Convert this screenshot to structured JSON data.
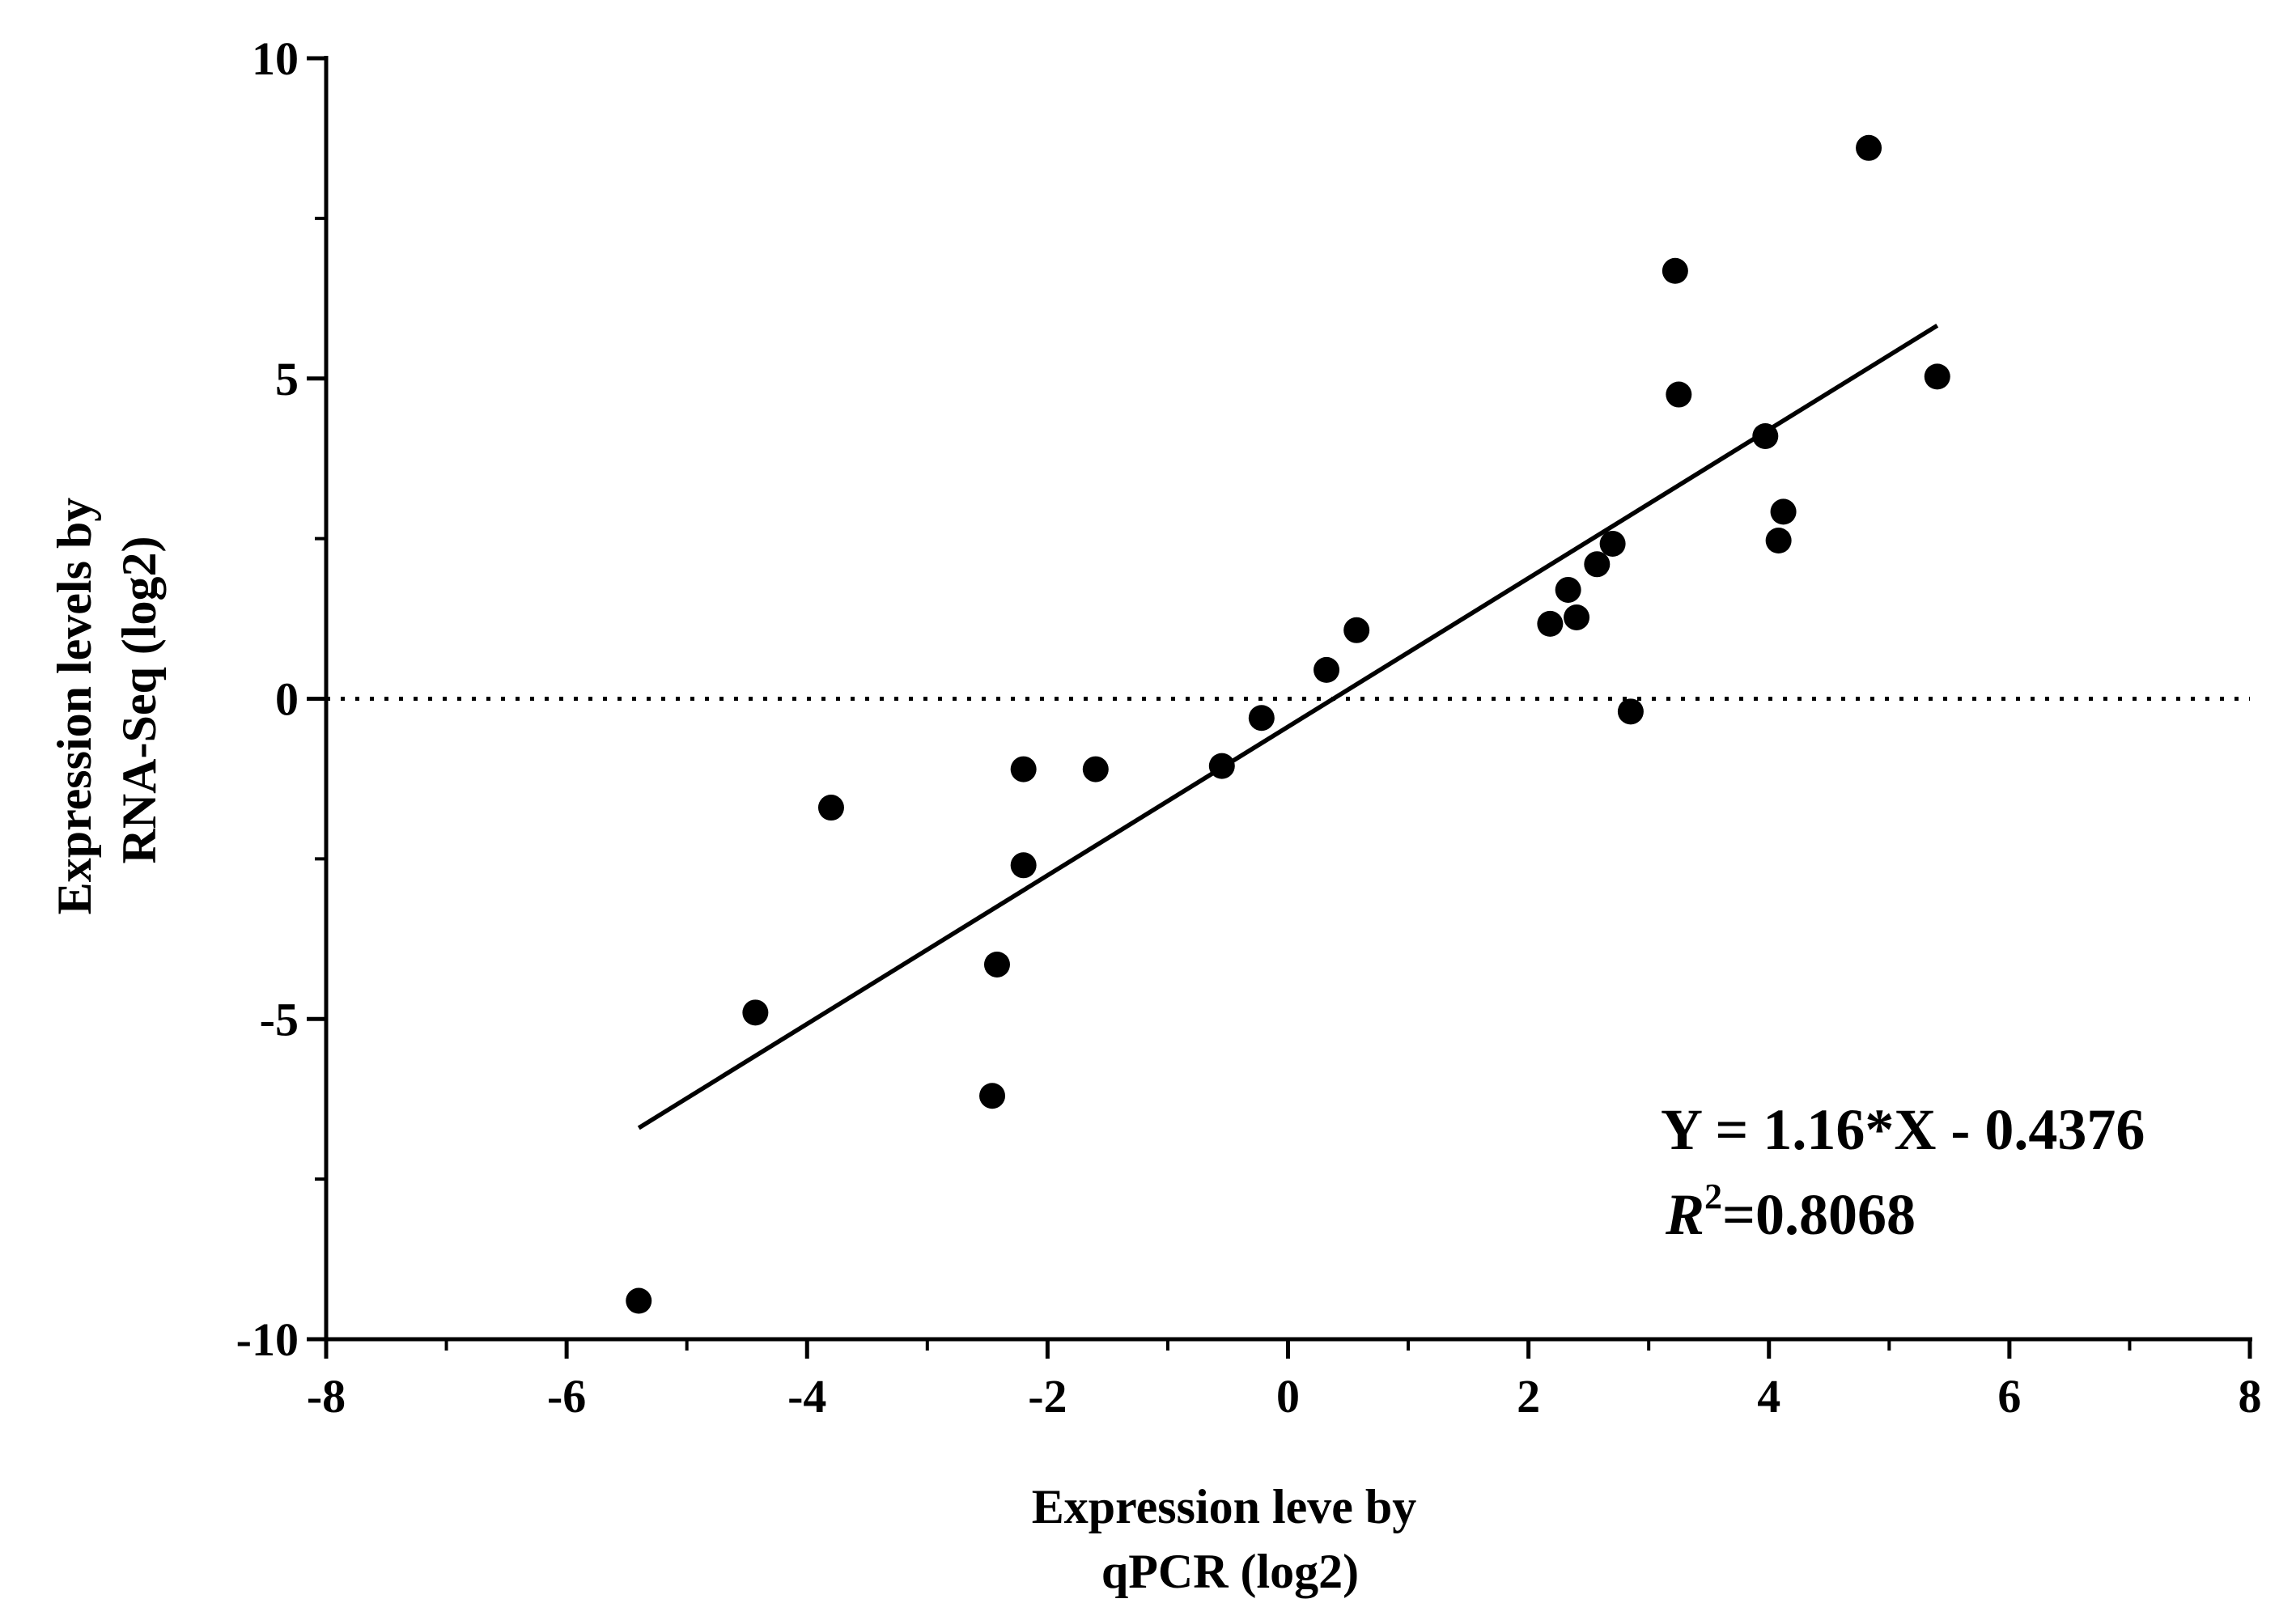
{
  "chart_data": {
    "type": "scatter",
    "title": "",
    "xlabel_lines": [
      "Expression leve by",
      "qPCR (log2)"
    ],
    "ylabel_lines": [
      "Expression levels by",
      "RNA-Seq (log2)"
    ],
    "xlim": [
      -8,
      8
    ],
    "ylim": [
      -10,
      10
    ],
    "x_ticks": [
      -8,
      -6,
      -4,
      -2,
      0,
      2,
      4,
      6,
      8
    ],
    "x_tick_labels": [
      "-8",
      "-6",
      "-4",
      "-2",
      "0",
      "2",
      "4",
      "6",
      "8"
    ],
    "x_minor_step": 1,
    "y_ticks": [
      -10,
      -5,
      0,
      5,
      10
    ],
    "y_tick_labels": [
      "-10",
      "-5",
      "0",
      "5",
      "10"
    ],
    "y_minor_step": 2.5,
    "reference_line": {
      "y": 0,
      "style": "dotted"
    },
    "fit": {
      "slope": 1.16,
      "intercept": -0.4376,
      "x_range": [
        -5.4,
        5.4
      ],
      "equation_label": "Y = 1.16*X - 0.4376",
      "r2_symbol": "R",
      "r2_superscript": "2",
      "r2_value": "=0.8068"
    },
    "points": [
      {
        "x": -5.4,
        "y": -9.4
      },
      {
        "x": -4.43,
        "y": -4.9
      },
      {
        "x": -3.8,
        "y": -1.7
      },
      {
        "x": -2.46,
        "y": -6.2
      },
      {
        "x": -2.42,
        "y": -4.15
      },
      {
        "x": -2.2,
        "y": -2.6
      },
      {
        "x": -2.2,
        "y": -1.1
      },
      {
        "x": -1.6,
        "y": -1.1
      },
      {
        "x": -0.55,
        "y": -1.05
      },
      {
        "x": -0.22,
        "y": -0.3
      },
      {
        "x": 0.32,
        "y": 0.45
      },
      {
        "x": 0.57,
        "y": 1.07
      },
      {
        "x": 2.18,
        "y": 1.17
      },
      {
        "x": 2.33,
        "y": 1.7
      },
      {
        "x": 2.4,
        "y": 1.27
      },
      {
        "x": 2.57,
        "y": 2.1
      },
      {
        "x": 2.7,
        "y": 2.42
      },
      {
        "x": 2.85,
        "y": -0.2
      },
      {
        "x": 3.22,
        "y": 6.68
      },
      {
        "x": 3.25,
        "y": 4.75
      },
      {
        "x": 3.97,
        "y": 4.1
      },
      {
        "x": 4.08,
        "y": 2.47
      },
      {
        "x": 4.12,
        "y": 2.92
      },
      {
        "x": 4.83,
        "y": 8.6
      },
      {
        "x": 5.4,
        "y": 5.03
      }
    ]
  }
}
